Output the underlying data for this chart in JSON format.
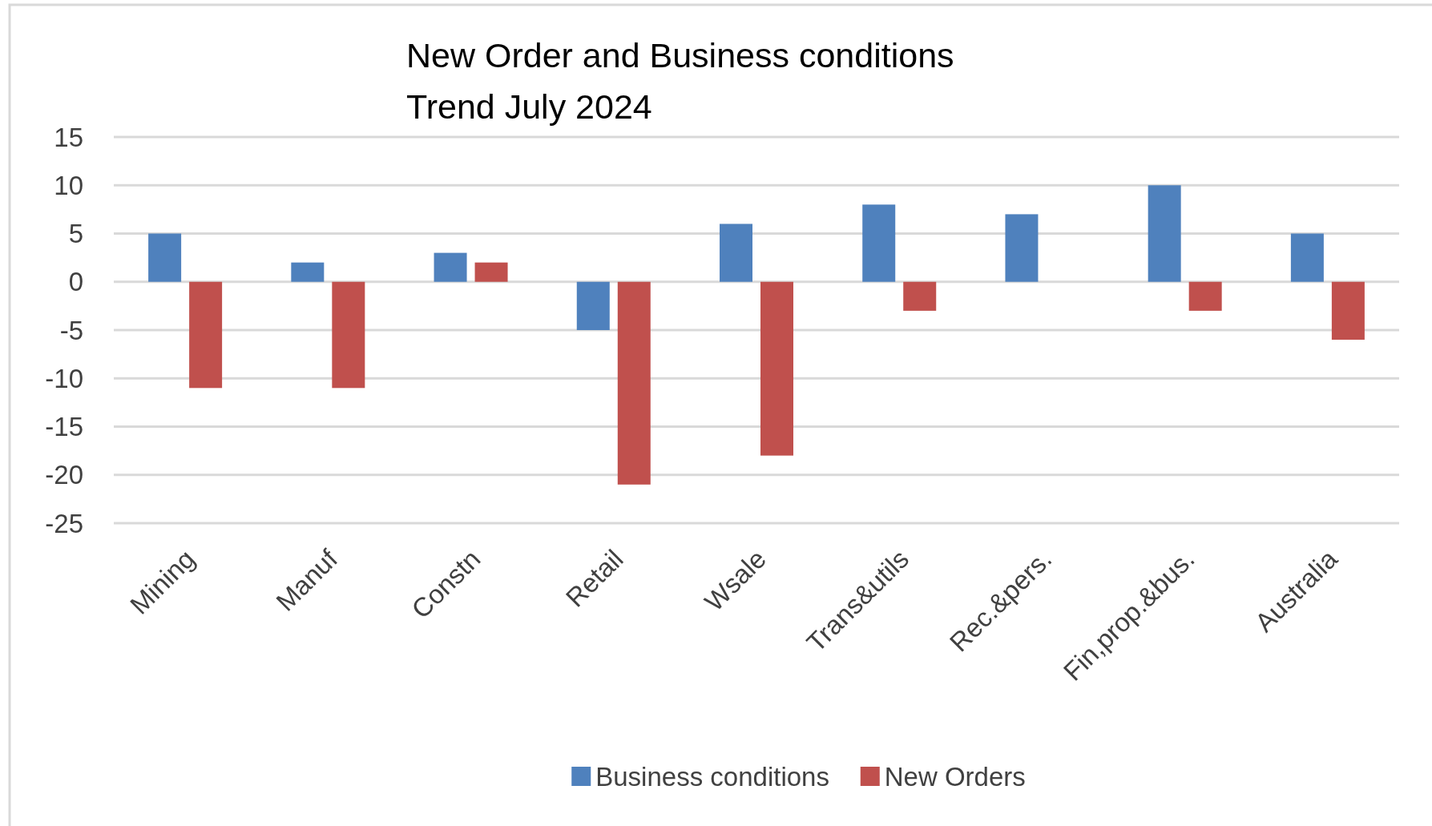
{
  "chart_data": {
    "type": "bar",
    "title": "New Order and Business conditions\nTrend July 2024",
    "categories": [
      "Mining",
      "Manuf",
      "Constn",
      "Retail",
      "Wsale",
      "Trans&utils",
      "Rec.&pers.",
      "Fin,prop.&bus.",
      "Australia"
    ],
    "series": [
      {
        "name": "Business conditions",
        "color": "#4f81bd",
        "values": [
          5,
          2,
          3,
          -5,
          6,
          8,
          7,
          10,
          5
        ]
      },
      {
        "name": "New Orders",
        "color": "#c0504d",
        "values": [
          -11,
          -11,
          2,
          -21,
          -18,
          -3,
          0,
          -3,
          -6
        ]
      }
    ],
    "ylim": [
      -25,
      15
    ],
    "yticks": [
      -25,
      -20,
      -15,
      -10,
      -5,
      0,
      5,
      10,
      15
    ],
    "grid": "y",
    "legend": "bottom"
  }
}
